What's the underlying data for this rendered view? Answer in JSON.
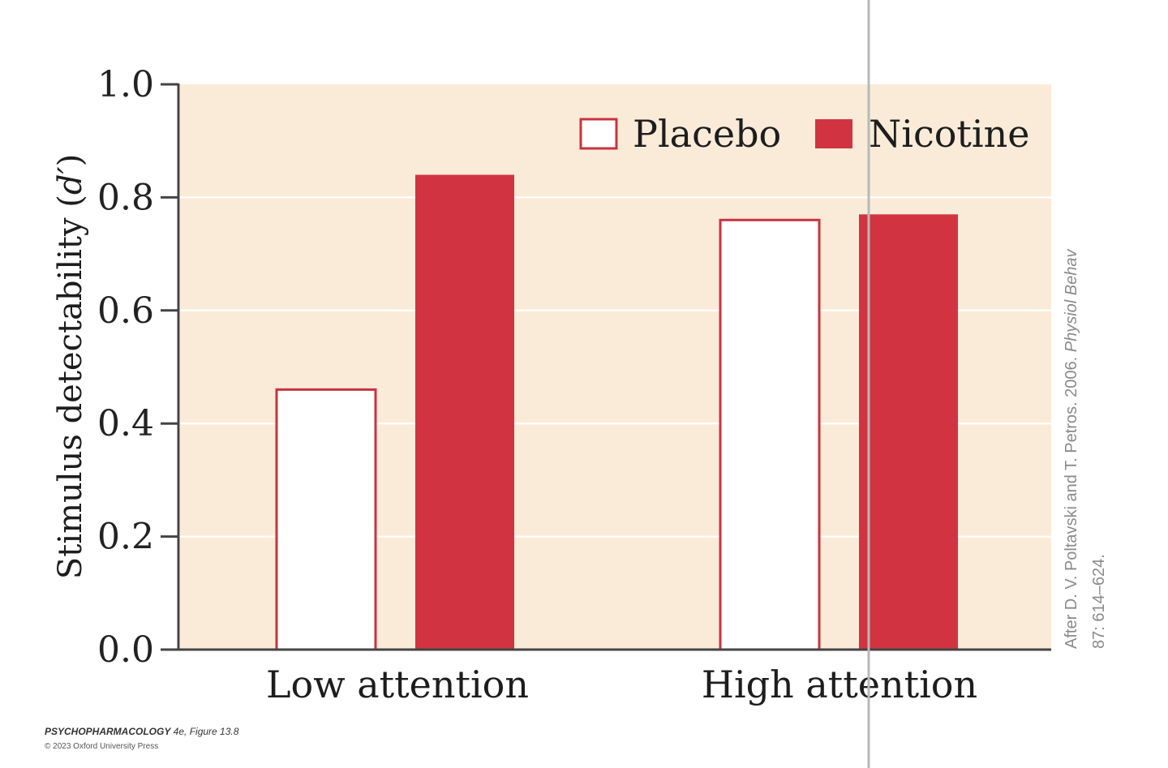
{
  "chart_data": {
    "type": "bar",
    "categories": [
      "Low attention",
      "High attention"
    ],
    "series": [
      {
        "name": "Placebo",
        "values": [
          0.46,
          0.76
        ]
      },
      {
        "name": "Nicotine",
        "values": [
          0.84,
          0.77
        ]
      }
    ],
    "ylabel_prefix": "Stimulus detectability (",
    "ylabel_var": "d′",
    "ylabel_suffix": ")",
    "ylim": [
      0,
      1.0
    ],
    "yticks": [
      "0.0",
      "0.2",
      "0.4",
      "0.6",
      "0.8",
      "1.0"
    ],
    "grid": true,
    "legend_position": "top-right"
  },
  "colors": {
    "plot_background": "#faebd9",
    "gridline": "#ffffff",
    "placebo_fill": "#ffffff",
    "placebo_stroke": "#c9333f",
    "nicotine_fill": "#d13440",
    "axis": "#444444",
    "overlay_line": "#b8b8b8"
  },
  "credit": {
    "prefix": "After D. V. Poltavski and T. Petros. 2006. ",
    "journal": "Physiol Behav",
    "line2": "87: 614–624."
  },
  "footer": {
    "line1_title": "PSYCHOPHARMACOLOGY",
    "line1_rest": " 4e, Figure 13.8",
    "line2": "© 2023 Oxford University Press"
  }
}
